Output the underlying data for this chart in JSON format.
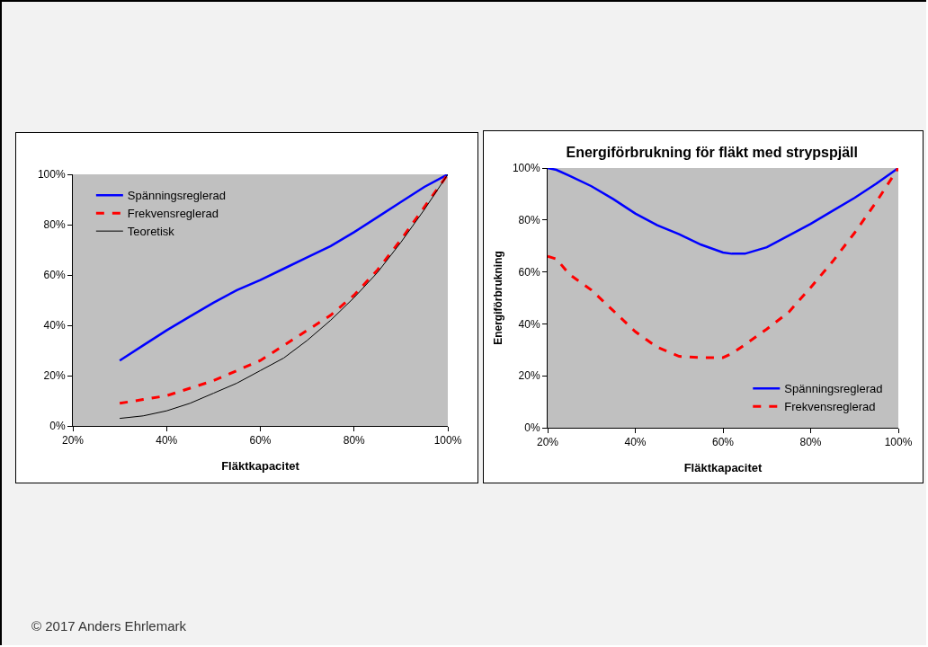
{
  "chart_data": [
    {
      "type": "line",
      "xlabel": "Fläktkapacitet",
      "x": [
        30,
        35,
        40,
        45,
        50,
        55,
        60,
        65,
        70,
        75,
        80,
        85,
        90,
        95,
        100
      ],
      "series": [
        {
          "name": "Spänningsreglerad",
          "color": "#0000ff",
          "line_style": "solid",
          "values": [
            26,
            32,
            38,
            43.5,
            49,
            54,
            58,
            62.5,
            67,
            71.5,
            77,
            83,
            89,
            95,
            100
          ]
        },
        {
          "name": "Frekvensreglerad",
          "color": "#ff0000",
          "line_style": "dashed",
          "values": [
            9,
            10.5,
            12,
            15,
            18,
            22,
            26,
            32,
            38,
            44,
            52,
            62,
            74,
            87,
            100
          ]
        },
        {
          "name": "Teoretisk",
          "color": "#000000",
          "line_style": "solid",
          "values": [
            3,
            4,
            6,
            9,
            13,
            17,
            22,
            27,
            34,
            42,
            51,
            61,
            73,
            86,
            100
          ]
        }
      ],
      "xlim": [
        20,
        100
      ],
      "ylim": [
        0,
        100
      ],
      "xticks": [
        {
          "value": 20,
          "label": "20%"
        },
        {
          "value": 40,
          "label": "40%"
        },
        {
          "value": 60,
          "label": "60%"
        },
        {
          "value": 80,
          "label": "80%"
        },
        {
          "value": 100,
          "label": "100%"
        }
      ],
      "yticks": [
        {
          "value": 0,
          "label": "0%"
        },
        {
          "value": 20,
          "label": "20%"
        },
        {
          "value": 40,
          "label": "40%"
        },
        {
          "value": 60,
          "label": "60%"
        },
        {
          "value": 80,
          "label": "80%"
        },
        {
          "value": 100,
          "label": "100%"
        }
      ],
      "grid": false,
      "legend": "top left",
      "marker": "none",
      "annotations": [
        "© 2017 Anders Ehrlemark"
      ]
    },
    {
      "type": "line",
      "title": "Energiförbrukning för fläkt med strypspjäll",
      "xlabel": "Fläktkapacitet",
      "ylabel": "Energiförbrukning",
      "x": [
        20,
        22,
        25,
        30,
        35,
        40,
        45,
        50,
        55,
        60,
        62,
        65,
        70,
        75,
        80,
        85,
        90,
        95,
        100
      ],
      "series": [
        {
          "name": "Spänningsreglerad",
          "color": "#0000ff",
          "line_style": "solid",
          "values": [
            100,
            99.3,
            97,
            93,
            88,
            82.5,
            78,
            74.5,
            70.5,
            67.5,
            67,
            67,
            69.5,
            74,
            78.5,
            83.5,
            88.5,
            94,
            100
          ]
        },
        {
          "name": "Frekvensreglerad",
          "color": "#ff0000",
          "line_style": "dashed",
          "values": [
            66,
            65,
            59,
            53,
            45,
            37,
            31,
            27.5,
            27,
            27,
            28.5,
            32,
            38,
            44.5,
            54,
            64,
            75,
            87,
            100
          ]
        }
      ],
      "xlim": [
        20,
        100
      ],
      "ylim": [
        0,
        100
      ],
      "xticks": [
        {
          "value": 20,
          "label": "20%"
        },
        {
          "value": 40,
          "label": "40%"
        },
        {
          "value": 60,
          "label": "60%"
        },
        {
          "value": 80,
          "label": "80%"
        },
        {
          "value": 100,
          "label": "100%"
        }
      ],
      "yticks": [
        {
          "value": 0,
          "label": "0%"
        },
        {
          "value": 20,
          "label": "20%"
        },
        {
          "value": 40,
          "label": "40%"
        },
        {
          "value": 60,
          "label": "60%"
        },
        {
          "value": 80,
          "label": "80%"
        },
        {
          "value": 100,
          "label": "100%"
        }
      ],
      "grid": false,
      "legend": "bottom right",
      "marker": "none"
    }
  ]
}
